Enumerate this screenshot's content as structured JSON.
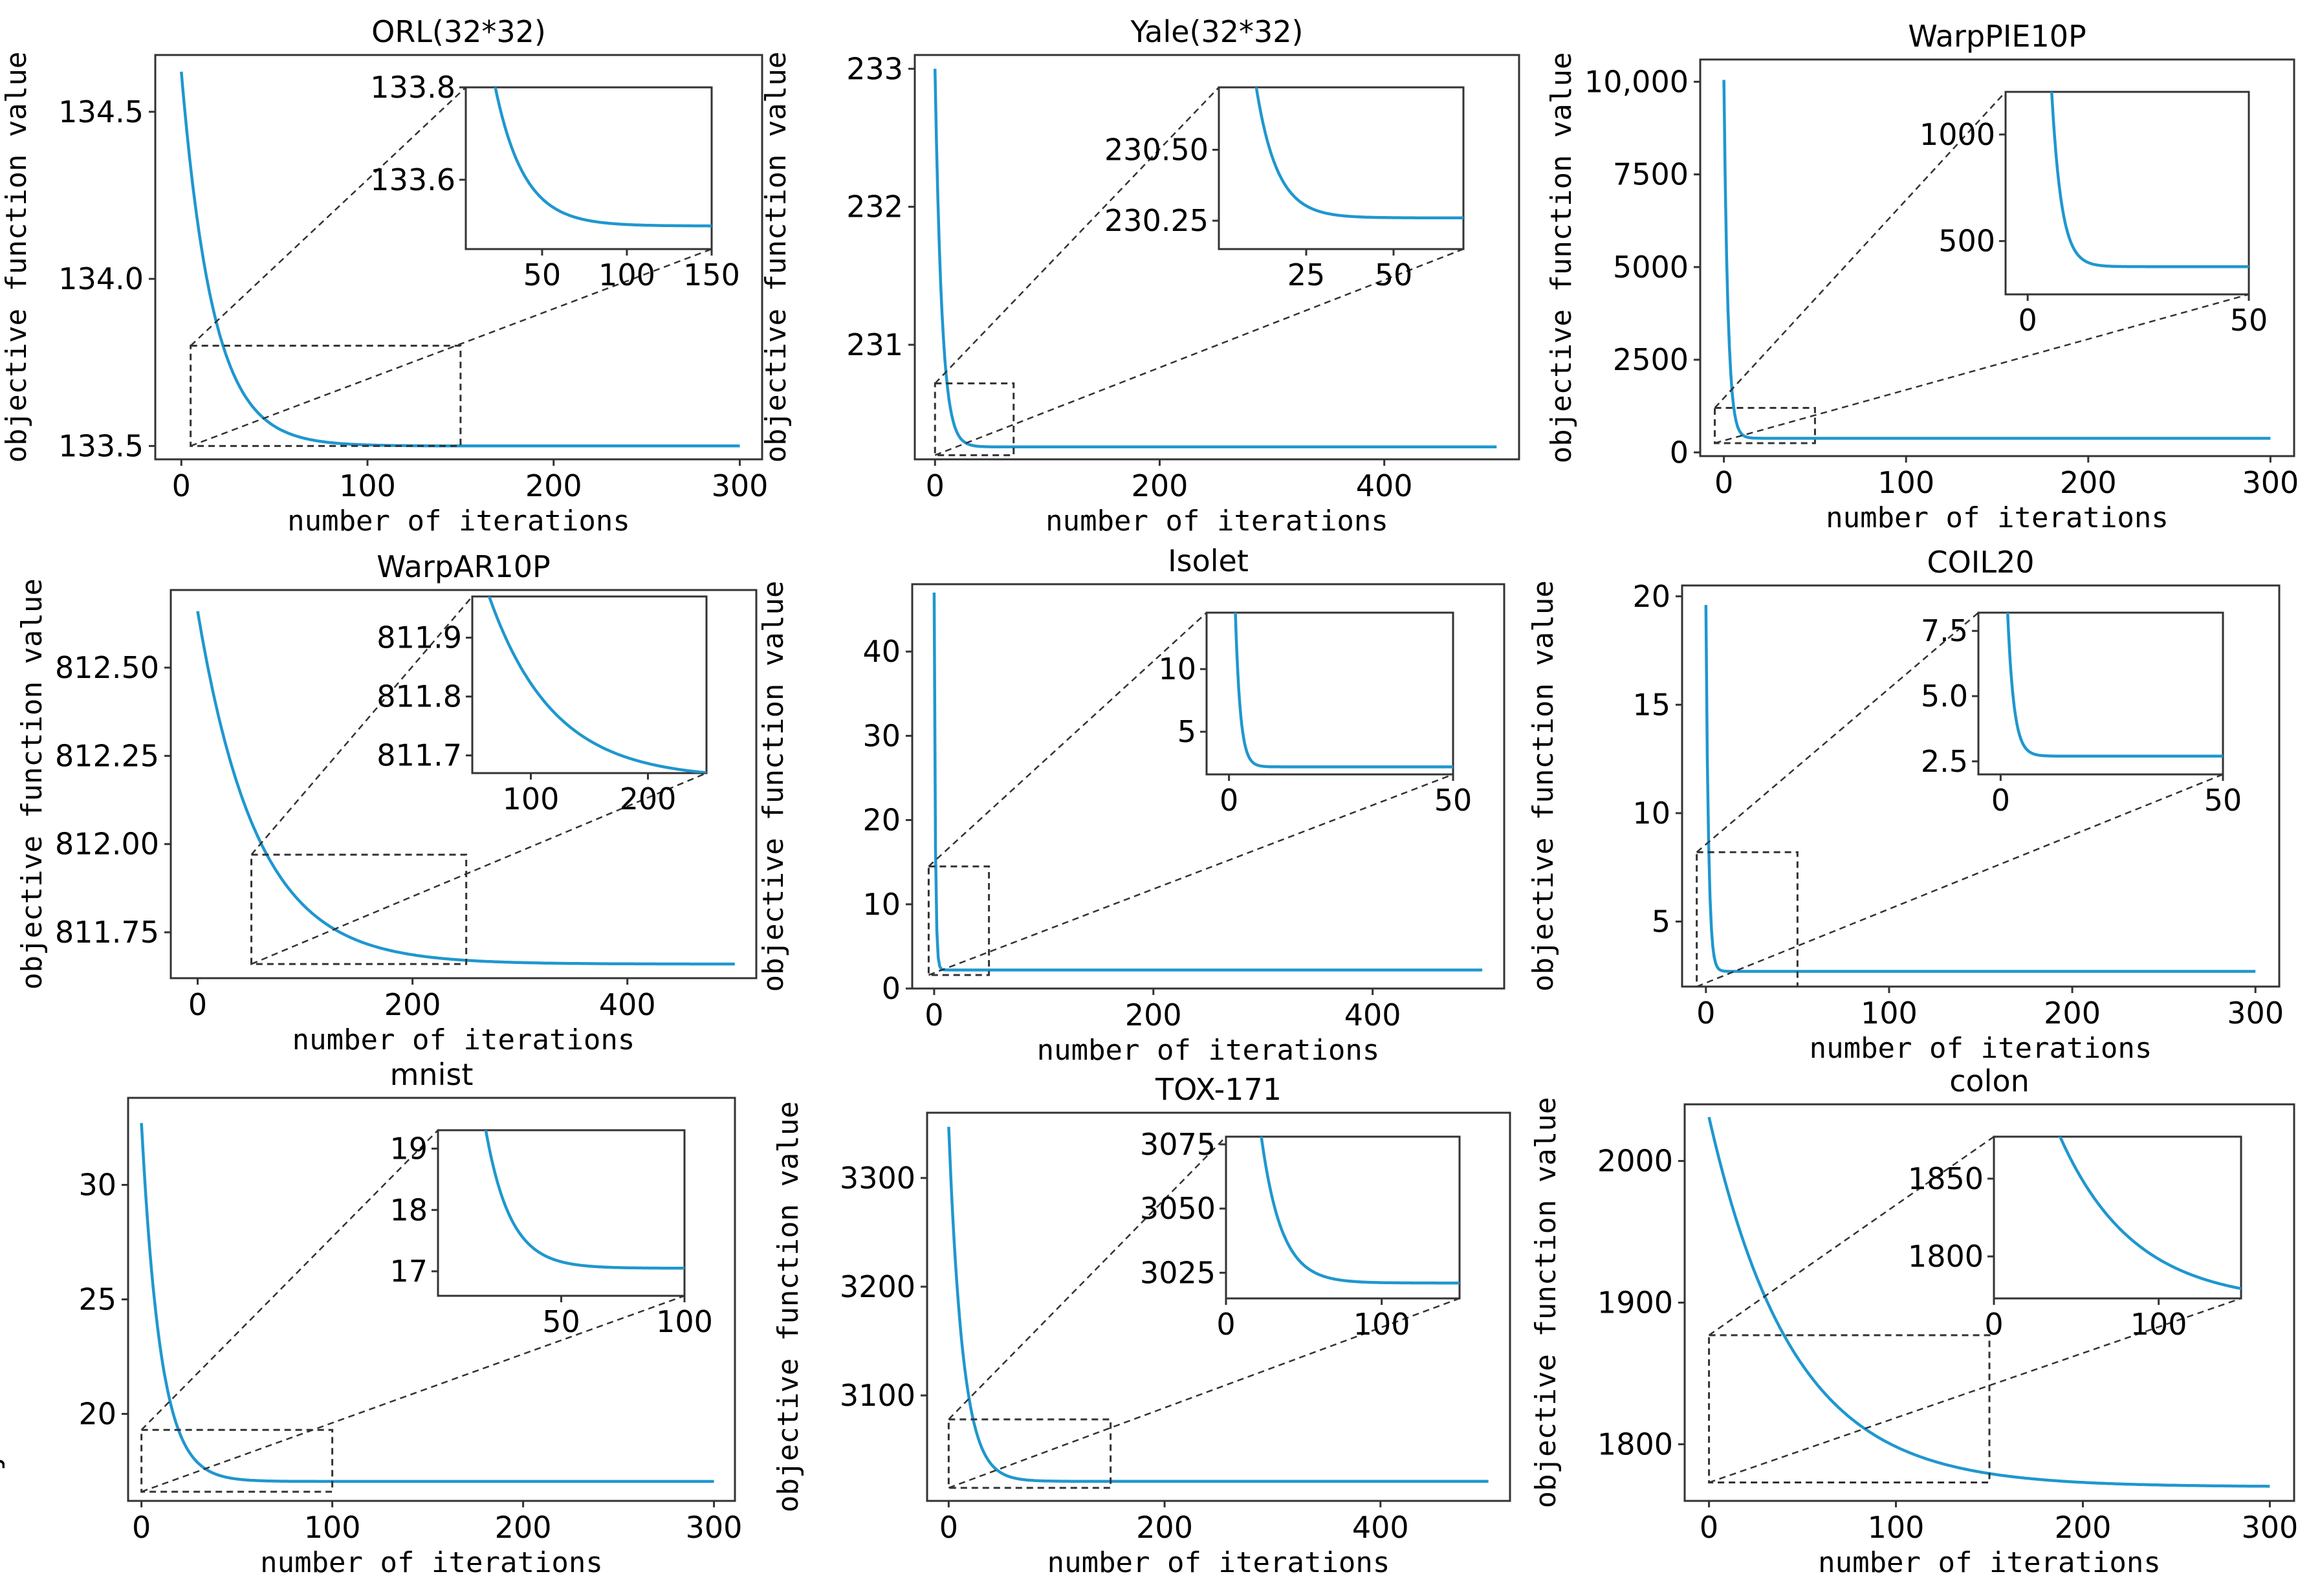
{
  "figure": {
    "line_color": "#1f97cf",
    "frame_color": "#333333",
    "zoom_color": "#333333"
  },
  "chart_data": [
    {
      "type": "line",
      "title": "ORL(32*32)",
      "xlabel": "number of iterations",
      "ylabel": "objective function value",
      "xlim": [
        -14,
        312
      ],
      "ylim": [
        133.46,
        134.67
      ],
      "xticks": [
        0,
        100,
        200,
        300
      ],
      "yticks": [
        133.5,
        134.0,
        134.5
      ],
      "ytick_labels": [
        "133.5",
        "134.0",
        "134.5"
      ],
      "x_end": 300,
      "y0": 134.62,
      "y_inf": 133.5,
      "decay": 17,
      "zoom": {
        "x": [
          5,
          150
        ],
        "y": [
          133.5,
          133.8
        ]
      },
      "inset": {
        "xlim": [
          5,
          150
        ],
        "ylim": [
          133.45,
          133.8
        ],
        "xticks": [
          50,
          100,
          150
        ],
        "yticks": [
          133.6,
          133.8
        ],
        "ytick_labels": [
          "133.6",
          "133.8"
        ]
      }
    },
    {
      "type": "line",
      "title": "Yale(32*32)",
      "xlabel": "number of iterations",
      "ylabel": "objective function value",
      "xlim": [
        -18,
        520
      ],
      "ylim": [
        230.17,
        233.1
      ],
      "xticks": [
        0,
        200,
        400
      ],
      "yticks": [
        231,
        232,
        233
      ],
      "ytick_labels": [
        "231",
        "232",
        "233"
      ],
      "x_end": 500,
      "y0": 233.0,
      "y_inf": 230.26,
      "decay": 6,
      "zoom": {
        "x": [
          0,
          70
        ],
        "y": [
          230.2,
          230.72
        ]
      },
      "inset": {
        "xlim": [
          0,
          70
        ],
        "ylim": [
          230.15,
          230.72
        ],
        "xticks": [
          25,
          50
        ],
        "yticks": [
          230.25,
          230.5
        ],
        "ytick_labels": [
          "230.25",
          "230.50"
        ]
      }
    },
    {
      "type": "line",
      "title": "WarpPIE10P",
      "xlabel": "number of iterations",
      "ylabel": "objective function value",
      "xlim": [
        -13,
        313
      ],
      "ylim": [
        -100,
        10600
      ],
      "xticks": [
        0,
        100,
        200,
        300
      ],
      "yticks": [
        0,
        2500,
        5000,
        7500,
        10000
      ],
      "ytick_labels": [
        "0",
        "2500",
        "5000",
        "7500",
        "10,000"
      ],
      "x_end": 300,
      "y0": 10050,
      "y_inf": 380,
      "decay": 2.2,
      "zoom": {
        "x": [
          -5,
          50
        ],
        "y": [
          250,
          1200
        ]
      },
      "inset": {
        "xlim": [
          -5,
          50
        ],
        "ylim": [
          250,
          1200
        ],
        "xticks": [
          0,
          50
        ],
        "yticks": [
          500,
          1000
        ],
        "ytick_labels": [
          "500",
          "1000"
        ]
      }
    },
    {
      "type": "line",
      "title": "WarpAR10P",
      "xlabel": "number of iterations",
      "ylabel": "objective function value",
      "xlim": [
        -25,
        520
      ],
      "ylim": [
        811.62,
        812.72
      ],
      "xticks": [
        0,
        200,
        400
      ],
      "yticks": [
        811.75,
        812.0,
        812.25,
        812.5
      ],
      "ytick_labels": [
        "811.75",
        "812.00",
        "812.25",
        "812.50"
      ],
      "x_end": 500,
      "y0": 812.66,
      "y_inf": 811.66,
      "decay": 55,
      "zoom": {
        "x": [
          50,
          250
        ],
        "y": [
          811.66,
          811.97
        ]
      },
      "inset": {
        "xlim": [
          50,
          250
        ],
        "ylim": [
          811.67,
          811.97
        ],
        "xticks": [
          100,
          200
        ],
        "yticks": [
          811.7,
          811.8,
          811.9
        ],
        "ytick_labels": [
          "811.7",
          "811.8",
          "811.9"
        ]
      }
    },
    {
      "type": "line",
      "title": "Isolet",
      "xlabel": "number of iterations",
      "ylabel": "objective function value",
      "xlim": [
        -20,
        520
      ],
      "ylim": [
        0,
        48
      ],
      "xticks": [
        0,
        200,
        400
      ],
      "yticks": [
        0,
        10,
        20,
        30,
        40
      ],
      "ytick_labels": [
        "0",
        "10",
        "20",
        "30",
        "40"
      ],
      "x_end": 500,
      "y0": 47,
      "y_inf": 2.2,
      "decay": 1.1,
      "zoom": {
        "x": [
          -5,
          50
        ],
        "y": [
          1.6,
          14.5
        ]
      },
      "inset": {
        "xlim": [
          -5,
          50
        ],
        "ylim": [
          1.6,
          14.5
        ],
        "xticks": [
          0,
          50
        ],
        "yticks": [
          5,
          10
        ],
        "ytick_labels": [
          "5",
          "10"
        ]
      }
    },
    {
      "type": "line",
      "title": "COIL20",
      "xlabel": "number of iterations",
      "ylabel": "objective function value",
      "xlim": [
        -13,
        313
      ],
      "ylim": [
        2,
        20.5
      ],
      "xticks": [
        0,
        100,
        200,
        300
      ],
      "yticks": [
        5,
        10,
        15,
        20
      ],
      "ytick_labels": [
        "5",
        "10",
        "15",
        "20"
      ],
      "x_end": 300,
      "y0": 19.6,
      "y_inf": 2.7,
      "decay": 1.4,
      "zoom": {
        "x": [
          -5,
          50
        ],
        "y": [
          2.0,
          8.2
        ]
      },
      "inset": {
        "xlim": [
          -5,
          50
        ],
        "ylim": [
          2.0,
          8.2
        ],
        "xticks": [
          0,
          50
        ],
        "yticks": [
          2.5,
          5.0,
          7.5
        ],
        "ytick_labels": [
          "2.5",
          "5.0",
          "7.5"
        ]
      }
    },
    {
      "type": "line",
      "title": "mnist",
      "xlabel": "number of iterations",
      "ylabel": "objective function value",
      "xlim": [
        -7,
        311
      ],
      "ylim": [
        16.2,
        33.8
      ],
      "xticks": [
        0,
        100,
        200,
        300
      ],
      "yticks": [
        20,
        25,
        30
      ],
      "ytick_labels": [
        "20",
        "25",
        "30"
      ],
      "x_end": 300,
      "y0": 32.7,
      "y_inf": 17.05,
      "decay": 10,
      "zoom": {
        "x": [
          0,
          100
        ],
        "y": [
          16.6,
          19.3
        ]
      },
      "inset": {
        "xlim": [
          0,
          100
        ],
        "ylim": [
          16.6,
          19.3
        ],
        "xticks": [
          50,
          100
        ],
        "yticks": [
          17,
          18,
          19
        ],
        "ytick_labels": [
          "17",
          "18",
          "19"
        ]
      }
    },
    {
      "type": "line",
      "title": "TOX-171",
      "xlabel": "number of iterations",
      "ylabel": "objective function value",
      "xlim": [
        -20,
        520
      ],
      "ylim": [
        3003,
        3360
      ],
      "xticks": [
        0,
        200,
        400
      ],
      "yticks": [
        3100,
        3200,
        3300
      ],
      "ytick_labels": [
        "3100",
        "3200",
        "3300"
      ],
      "x_end": 500,
      "y0": 3347,
      "y_inf": 3021,
      "decay": 13,
      "zoom": {
        "x": [
          0,
          150
        ],
        "y": [
          3015,
          3078
        ]
      },
      "inset": {
        "xlim": [
          0,
          150
        ],
        "ylim": [
          3015,
          3078
        ],
        "xticks": [
          0,
          100
        ],
        "yticks": [
          3025,
          3050,
          3075
        ],
        "ytick_labels": [
          "3025",
          "3050",
          "3075"
        ]
      }
    },
    {
      "type": "line",
      "title": "colon",
      "xlabel": "number of iterations",
      "ylabel": "objective function value",
      "xlim": [
        -13,
        313
      ],
      "ylim": [
        1760,
        2040
      ],
      "xticks": [
        0,
        100,
        200,
        300
      ],
      "yticks": [
        1800,
        1900,
        2000
      ],
      "ytick_labels": [
        "1800",
        "1900",
        "2000"
      ],
      "x_end": 300,
      "y0": 2031,
      "y_inf": 1770,
      "decay": 45,
      "zoom": {
        "x": [
          0,
          150
        ],
        "y": [
          1773,
          1877
        ]
      },
      "inset": {
        "xlim": [
          0,
          150
        ],
        "ylim": [
          1773,
          1877
        ],
        "xticks": [
          0,
          100
        ],
        "yticks": [
          1800,
          1850
        ],
        "ytick_labels": [
          "1800",
          "1850"
        ]
      }
    }
  ]
}
